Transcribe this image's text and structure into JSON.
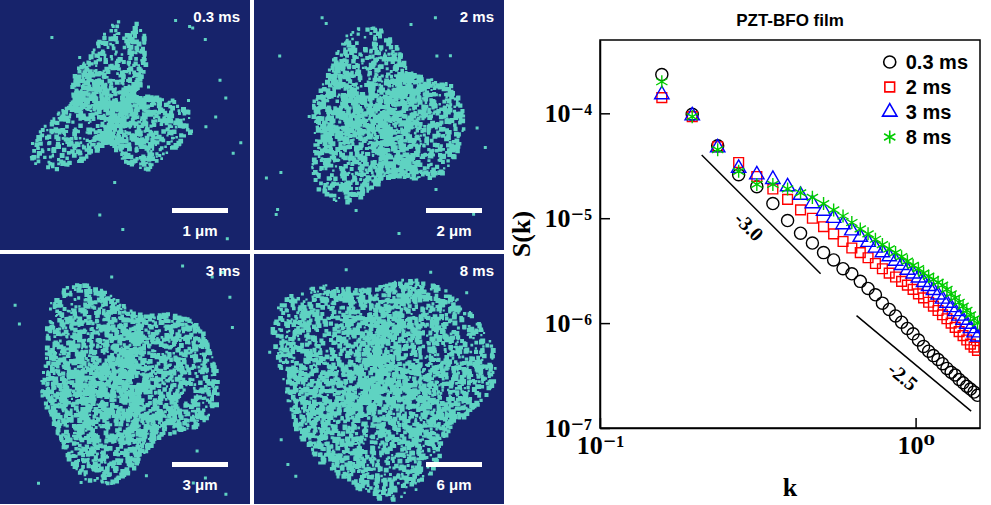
{
  "micrographs": {
    "panels": [
      {
        "time": "0.3 ms",
        "scale_bar": "1 μm"
      },
      {
        "time": "2 ms",
        "scale_bar": "2 μm"
      },
      {
        "time": "3 ms",
        "scale_bar": "3 μm"
      },
      {
        "time": "8 ms",
        "scale_bar": "6 μm"
      }
    ]
  },
  "chart_data": {
    "type": "scatter",
    "title": "PZT-BFO film",
    "x_label": "k",
    "y_label": "S(k)",
    "log": true,
    "xlim": [
      0.1,
      1.6
    ],
    "ylim": [
      1e-07,
      0.0005
    ],
    "xticks": [
      {
        "value": 0.1,
        "label": "10⁻¹"
      },
      {
        "value": 1,
        "label": "10⁰"
      }
    ],
    "yticks": [
      {
        "value": 1e-07,
        "label": "10⁻⁷"
      },
      {
        "value": 1e-06,
        "label": "10⁻⁶"
      },
      {
        "value": 1e-05,
        "label": "10⁻⁵"
      },
      {
        "value": 0.0001,
        "label": "10⁻⁴"
      }
    ],
    "legend": "top-right",
    "x": [
      0.157,
      0.196,
      0.236,
      0.275,
      0.314,
      0.353,
      0.393,
      0.432,
      0.471,
      0.511,
      0.55,
      0.589,
      0.628,
      0.668,
      0.707,
      0.746,
      0.785,
      0.825,
      0.864,
      0.903,
      0.942,
      0.982,
      1.021,
      1.06,
      1.1,
      1.139,
      1.178,
      1.217,
      1.257,
      1.296,
      1.335,
      1.374,
      1.414,
      1.453,
      1.492,
      1.532,
      1.571
    ],
    "series": [
      {
        "name": "0.3 ms",
        "color": "#000000",
        "marker": "circle",
        "values": [
          0.000234,
          9.8e-05,
          4.9e-05,
          2.6e-05,
          2e-05,
          1.38e-05,
          9.5e-06,
          7.2e-06,
          5.8e-06,
          4.7e-06,
          4e-06,
          3.3e-06,
          2.95e-06,
          2.5e-06,
          2.14e-06,
          1.86e-06,
          1.55e-06,
          1.35e-06,
          1.17e-06,
          1.02e-06,
          8.9e-07,
          7.9e-07,
          6.9e-07,
          6e-07,
          5.4e-07,
          4.9e-07,
          4.5e-07,
          4.1e-07,
          3.7e-07,
          3.4e-07,
          3.2e-07,
          2.9e-07,
          2.7e-07,
          2.5e-07,
          2.35e-07,
          2.2e-07,
          2.05e-07
        ]
      },
      {
        "name": "2 ms",
        "color": "#ff0000",
        "marker": "square",
        "values": [
          0.000141,
          9.3e-05,
          4.8e-05,
          3.4e-05,
          2.5e-05,
          1.9e-05,
          1.51e-05,
          1.2e-05,
          1e-05,
          8.3e-06,
          7.1e-06,
          6e-06,
          5.2e-06,
          4.7e-06,
          4.2e-06,
          3.7e-06,
          3.3e-06,
          3e-06,
          2.75e-06,
          2.5e-06,
          2.3e-06,
          2.1e-06,
          1.9e-06,
          1.74e-06,
          1.58e-06,
          1.45e-06,
          1.32e-06,
          1.2e-06,
          1.1e-06,
          1e-06,
          9.1e-07,
          8.3e-07,
          7.6e-07,
          6.9e-07,
          6.3e-07,
          5.9e-07,
          5.5e-07
        ]
      },
      {
        "name": "3 ms",
        "color": "#0000ff",
        "marker": "triangle",
        "values": [
          0.000151,
          9.5e-05,
          4.7e-05,
          3e-05,
          2.6e-05,
          2.35e-05,
          2e-05,
          1.66e-05,
          1.38e-05,
          1.17e-05,
          1e-05,
          8.7e-06,
          7.6e-06,
          6.6e-06,
          5.9e-06,
          5.2e-06,
          4.7e-06,
          4.3e-06,
          3.9e-06,
          3.55e-06,
          3.2e-06,
          2.95e-06,
          2.7e-06,
          2.45e-06,
          2.24e-06,
          2.05e-06,
          1.86e-06,
          1.7e-06,
          1.55e-06,
          1.41e-06,
          1.29e-06,
          1.17e-06,
          1.07e-06,
          9.8e-07,
          8.9e-07,
          8.1e-07,
          7.4e-07
        ]
      },
      {
        "name": "8 ms",
        "color": "#00cc00",
        "marker": "asterisk",
        "values": [
          0.0002,
          9.3e-05,
          4.5e-05,
          2.8e-05,
          2.1e-05,
          2.1e-05,
          1.9e-05,
          1.74e-05,
          1.58e-05,
          1.38e-05,
          1.2e-05,
          1.05e-05,
          9.1e-06,
          7.9e-06,
          7.1e-06,
          6.3e-06,
          5.6e-06,
          5.1e-06,
          4.7e-06,
          4.3e-06,
          3.9e-06,
          3.55e-06,
          3.3e-06,
          3e-06,
          2.8e-06,
          2.6e-06,
          2.45e-06,
          2.3e-06,
          2.1e-06,
          1.9e-06,
          1.74e-06,
          1.58e-06,
          1.45e-06,
          1.32e-06,
          1.2e-06,
          1.1e-06,
          1e-06
        ]
      }
    ],
    "reference_lines": [
      {
        "label": "-3.0",
        "x": [
          0.21,
          0.5
        ],
        "y": [
          4e-05,
          2.96e-06
        ]
      },
      {
        "label": "-2.5",
        "x": [
          0.65,
          1.5
        ],
        "y": [
          1.18e-06,
          1.45e-07
        ]
      }
    ]
  }
}
